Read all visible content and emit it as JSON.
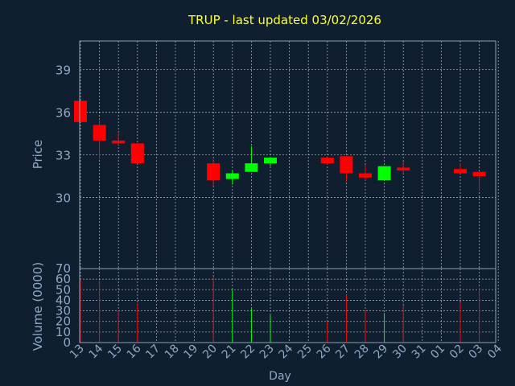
{
  "chart_data": {
    "type": "candlestick",
    "title": "TRUP - last updated 03/02/2026",
    "xlabel": "Day",
    "ylabel_price": "Price",
    "ylabel_volume": "Volume (0000)",
    "x_ticks": [
      "13",
      "14",
      "15",
      "16",
      "17",
      "18",
      "19",
      "20",
      "21",
      "22",
      "23",
      "24",
      "25",
      "26",
      "27",
      "28",
      "29",
      "30",
      "31",
      "01",
      "02",
      "03",
      "04"
    ],
    "price_ylim": [
      25,
      41
    ],
    "price_ticks": [
      30,
      33,
      36,
      39
    ],
    "volume_ylim": [
      0,
      70
    ],
    "volume_ticks": [
      0,
      10,
      20,
      30,
      40,
      50,
      60,
      70
    ],
    "grid": true,
    "colors": {
      "background": "#0f1f30",
      "plot_border": "#8aa0b4",
      "grid": "#c8d0d8",
      "tick_label": "#8fa8c4",
      "title": "#ffff33",
      "up": "#00ff00",
      "down": "#ff0000"
    },
    "candles": [
      {
        "day": "13",
        "open": 36.8,
        "high": 36.8,
        "low": 35.3,
        "close": 35.3,
        "volume": 60
      },
      {
        "day": "14",
        "open": 35.1,
        "high": 35.5,
        "low": 32.7,
        "close": 34.0,
        "volume": 59
      },
      {
        "day": "15",
        "open": 34.0,
        "high": 34.6,
        "low": 33.7,
        "close": 33.8,
        "volume": 30
      },
      {
        "day": "16",
        "open": 33.8,
        "high": 33.8,
        "low": 32.4,
        "close": 32.4,
        "volume": 37
      },
      {
        "day": "20",
        "open": 32.4,
        "high": 32.7,
        "low": 30.8,
        "close": 31.2,
        "volume": 62
      },
      {
        "day": "21",
        "open": 31.3,
        "high": 31.9,
        "low": 30.9,
        "close": 31.7,
        "volume": 50
      },
      {
        "day": "22",
        "open": 31.8,
        "high": 33.6,
        "low": 31.8,
        "close": 32.4,
        "volume": 32
      },
      {
        "day": "23",
        "open": 32.4,
        "high": 32.8,
        "low": 32.2,
        "close": 32.8,
        "volume": 26
      },
      {
        "day": "26",
        "open": 32.8,
        "high": 32.8,
        "low": 32.3,
        "close": 32.4,
        "volume": 20
      },
      {
        "day": "27",
        "open": 32.9,
        "high": 32.9,
        "low": 31.1,
        "close": 31.7,
        "volume": 45
      },
      {
        "day": "28",
        "open": 31.7,
        "high": 32.3,
        "low": 31.2,
        "close": 31.4,
        "volume": 30
      },
      {
        "day": "29",
        "open": 31.2,
        "high": 32.2,
        "low": 31.2,
        "close": 32.2,
        "volume": 28
      },
      {
        "day": "30",
        "open": 32.1,
        "high": 32.5,
        "low": 31.7,
        "close": 31.9,
        "volume": 35
      },
      {
        "day": "02",
        "open": 32.0,
        "high": 32.4,
        "low": 31.7,
        "close": 31.7,
        "volume": 38
      },
      {
        "day": "03",
        "open": 31.8,
        "high": 31.8,
        "low": 30.5,
        "close": 31.5,
        "volume": 52
      }
    ]
  }
}
